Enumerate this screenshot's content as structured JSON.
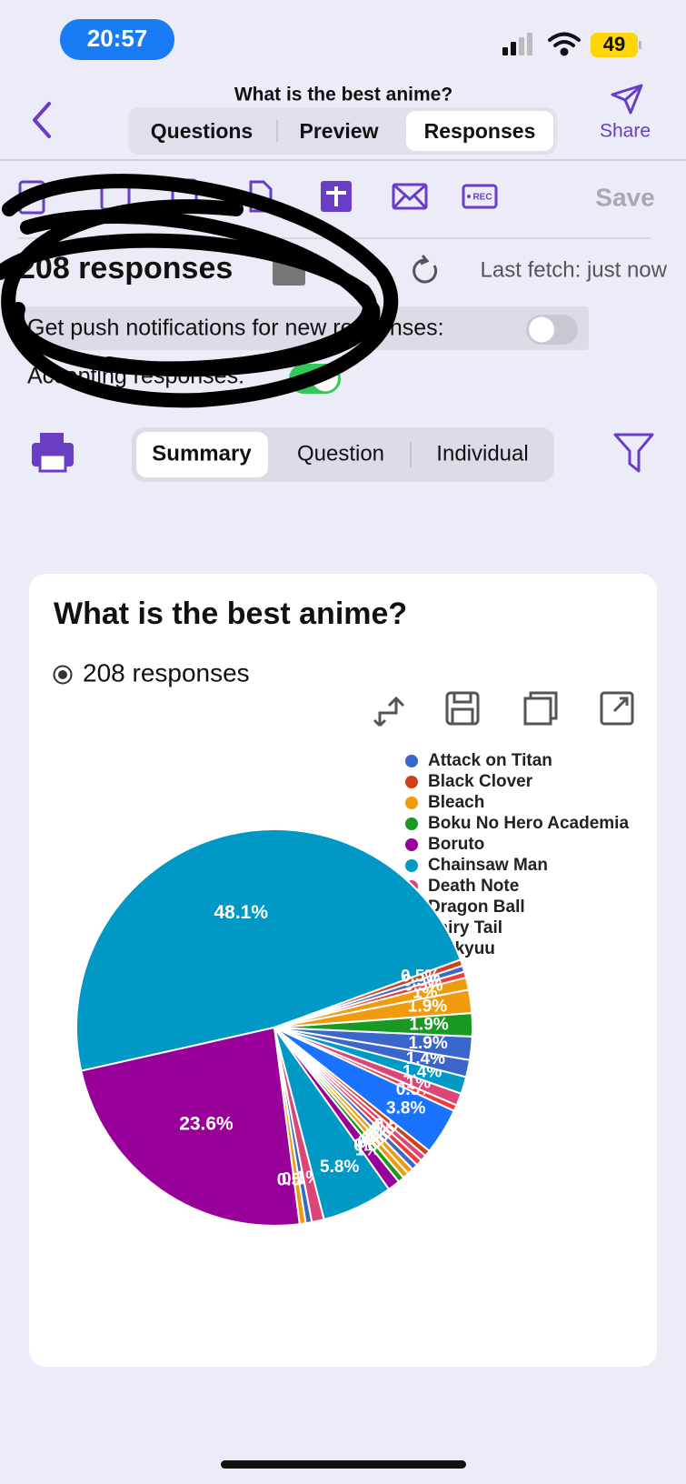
{
  "status_bar": {
    "time": "20:57",
    "battery": "49"
  },
  "nav": {
    "title": "What is the best anime?",
    "tabs": [
      "Questions",
      "Preview",
      "Responses"
    ],
    "share": "Share"
  },
  "toolbar": {
    "save": "Save"
  },
  "responses": {
    "count": "208 responses",
    "last_fetch": "Last fetch: just now",
    "push_label": "Get push notifications for new responses:",
    "accepting_label": "Accepting responses:"
  },
  "view_tabs": [
    "Summary",
    "Question",
    "Individual"
  ],
  "card": {
    "title": "What is the best anime?",
    "responses": "208 responses"
  },
  "chart_data": {
    "type": "pie",
    "values": [
      48.1,
      23.6,
      0.5,
      0.5,
      1.0,
      5.8,
      1.0,
      0.5,
      0.5,
      0.5,
      0.5,
      0.5,
      0.5,
      0.5,
      3.8,
      0.5,
      1.0,
      1.4,
      1.4,
      1.9,
      1.9,
      1.9,
      1.0,
      0.5,
      0.5,
      0.5
    ],
    "value_labels": [
      "48.1%",
      "23.6%",
      "0.5%",
      "0.5%",
      "1%",
      "5.8%",
      "1%",
      "0.5%",
      "0.5%",
      "0.5%",
      "0.5%",
      "0.5%",
      "0.5%",
      "0.5%",
      "3.8%",
      "0.5%",
      "1%",
      "1.4%",
      "1.4%",
      "1.9%",
      "1.9%",
      "1.9%",
      "1%",
      "0.5%",
      "0.5%",
      "0.5%"
    ],
    "colors": [
      "#0099c6",
      "#990099",
      "#f09a0e",
      "#3b66c9",
      "#dd4477",
      "#0099c6",
      "#990099",
      "#1a9922",
      "#f09a0e",
      "#f09a0e",
      "#3b66c9",
      "#f03b3b",
      "#dd4477",
      "#d23f1a",
      "#1a73ff",
      "#f03b3b",
      "#dd4477",
      "#0099c6",
      "#3b66c9",
      "#3b66c9",
      "#1a9922",
      "#f09a0e",
      "#f09a0e",
      "#f03b3b",
      "#3b66c9",
      "#d23f1a"
    ],
    "legend": [
      {
        "name": "Attack on Titan",
        "color": "#3b66c9"
      },
      {
        "name": "Black Clover",
        "color": "#d23f1a"
      },
      {
        "name": "Bleach",
        "color": "#f09a0e"
      },
      {
        "name": "Boku No Hero Academia",
        "color": "#1a9922"
      },
      {
        "name": "Boruto",
        "color": "#990099"
      },
      {
        "name": "Chainsaw Man",
        "color": "#0099c6"
      },
      {
        "name": "Death Note",
        "color": "#dd4477"
      },
      {
        "name": "Dragon Ball",
        "color": "#1a73ff"
      },
      {
        "name": "Fairy Tail",
        "color": "#f03b3b"
      },
      {
        "name": "Haikyuu",
        "color": "#f09a0e"
      }
    ]
  }
}
